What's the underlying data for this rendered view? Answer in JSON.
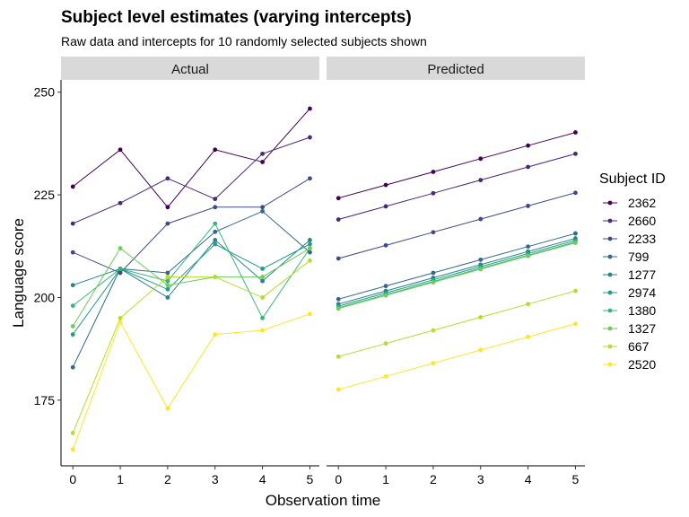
{
  "chart_data": {
    "type": "line",
    "title": "Subject level estimates (varying intercepts)",
    "subtitle": "Raw data and intercepts for 10 randomly selected subjects shown",
    "xlabel": "Observation time",
    "ylabel": "Language score",
    "x": [
      0,
      1,
      2,
      3,
      4,
      5
    ],
    "xlim": [
      -0.25,
      5.2
    ],
    "ylim": [
      159,
      253
    ],
    "yticks": [
      175,
      200,
      225,
      250
    ],
    "legend_title": "Subject ID",
    "legend_position": "right",
    "grid": false,
    "panels": [
      {
        "label": "Actual",
        "series": [
          {
            "name": "2362",
            "color": "#440154",
            "values": [
              227,
              236,
              222,
              236,
              233,
              246
            ]
          },
          {
            "name": "2660",
            "color": "#482878",
            "values": [
              218,
              223,
              229,
              224,
              235,
              239
            ]
          },
          {
            "name": "2233",
            "color": "#3E4A89",
            "values": [
              211,
              206,
              218,
              222,
              222,
              229
            ]
          },
          {
            "name": "799",
            "color": "#31688E",
            "values": [
              183,
              207,
              206,
              216,
              221,
              211
            ]
          },
          {
            "name": "1277",
            "color": "#26828E",
            "values": [
              203,
              207,
              200,
              214,
              204,
              214
            ]
          },
          {
            "name": "2974",
            "color": "#1F9E89",
            "values": [
              191,
              207,
              202,
              213,
              207,
              213
            ]
          },
          {
            "name": "1380",
            "color": "#35B779",
            "values": [
              198,
              207,
              204,
              218,
              195,
              212
            ]
          },
          {
            "name": "1327",
            "color": "#6DCD59",
            "values": [
              193,
              212,
              203,
              205,
              205,
              212
            ]
          },
          {
            "name": "667",
            "color": "#B4DE2C",
            "values": [
              167,
              195,
              205,
              205,
              200,
              209
            ]
          },
          {
            "name": "2520",
            "color": "#FDE725",
            "values": [
              163,
              194,
              173,
              191,
              192,
              196
            ]
          }
        ]
      },
      {
        "label": "Predicted",
        "series": [
          {
            "name": "2362",
            "color": "#440154",
            "values": [
              224.2,
              227.4,
              230.6,
              233.8,
              237.0,
              240.2
            ]
          },
          {
            "name": "2660",
            "color": "#482878",
            "values": [
              219.0,
              222.2,
              225.4,
              228.6,
              231.8,
              235.0
            ]
          },
          {
            "name": "2233",
            "color": "#3E4A89",
            "values": [
              209.5,
              212.7,
              215.9,
              219.1,
              222.3,
              225.5
            ]
          },
          {
            "name": "799",
            "color": "#31688E",
            "values": [
              199.6,
              202.8,
              206.0,
              209.2,
              212.4,
              215.6
            ]
          },
          {
            "name": "1277",
            "color": "#26828E",
            "values": [
              198.4,
              201.6,
              204.8,
              208.0,
              211.2,
              214.4
            ]
          },
          {
            "name": "2974",
            "color": "#1F9E89",
            "values": [
              197.9,
              201.1,
              204.3,
              207.5,
              210.7,
              213.9
            ]
          },
          {
            "name": "1380",
            "color": "#35B779",
            "values": [
              197.5,
              200.7,
              203.9,
              207.1,
              210.3,
              213.5
            ]
          },
          {
            "name": "1327",
            "color": "#6DCD59",
            "values": [
              197.3,
              200.5,
              203.7,
              206.9,
              210.1,
              213.3
            ]
          },
          {
            "name": "667",
            "color": "#B4DE2C",
            "values": [
              185.6,
              188.8,
              192.0,
              195.2,
              198.4,
              201.6
            ]
          },
          {
            "name": "2520",
            "color": "#FDE725",
            "values": [
              177.6,
              180.8,
              184.0,
              187.2,
              190.4,
              193.6
            ]
          }
        ]
      }
    ]
  }
}
